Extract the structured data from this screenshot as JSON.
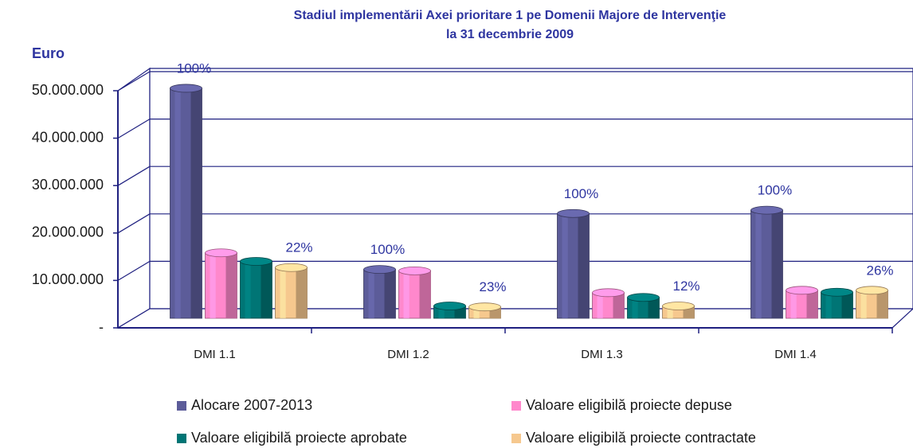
{
  "chart_data": {
    "type": "bar3d",
    "title": "Stadiul implementării Axei prioritare 1 pe Domenii Majore de Intervenţie",
    "subtitle": "la 31 decembrie 2009",
    "y_label": "Euro",
    "categories": [
      "DMI 1.1",
      "DMI 1.2",
      "DMI 1.3",
      "DMI 1.4"
    ],
    "series": [
      {
        "name": "Alocare 2007-2013",
        "color": "#5c5c99",
        "values": [
          48500000,
          10300000,
          22100000,
          22800000
        ],
        "percent_labels": [
          "100%",
          "100%",
          "100%",
          "100%"
        ]
      },
      {
        "name": "Valoare eligibilă proiecte depuse",
        "color": "#ff88cc",
        "values": [
          13800000,
          10000000,
          5400000,
          5900000
        ]
      },
      {
        "name": "Valoare eligibilă proiecte aprobate",
        "color": "#007575",
        "values": [
          12000000,
          2600000,
          4400000,
          5500000
        ]
      },
      {
        "name": "Valoare eligibilă proiecte contractate",
        "color": "#f6c88e",
        "values": [
          10700000,
          2400000,
          2600000,
          5900000
        ],
        "percent_labels": [
          "22%",
          "23%",
          "12%",
          "26%"
        ]
      }
    ],
    "ylim": [
      0,
      50000000
    ],
    "yticks": [
      {
        "value": 0,
        "label": "-"
      },
      {
        "value": 10000000,
        "label": "10.000.000"
      },
      {
        "value": 20000000,
        "label": "20.000.000"
      },
      {
        "value": 30000000,
        "label": "30.000.000"
      },
      {
        "value": 40000000,
        "label": "40.000.000"
      },
      {
        "value": 50000000,
        "label": "50.000.000"
      }
    ],
    "grid": true
  }
}
